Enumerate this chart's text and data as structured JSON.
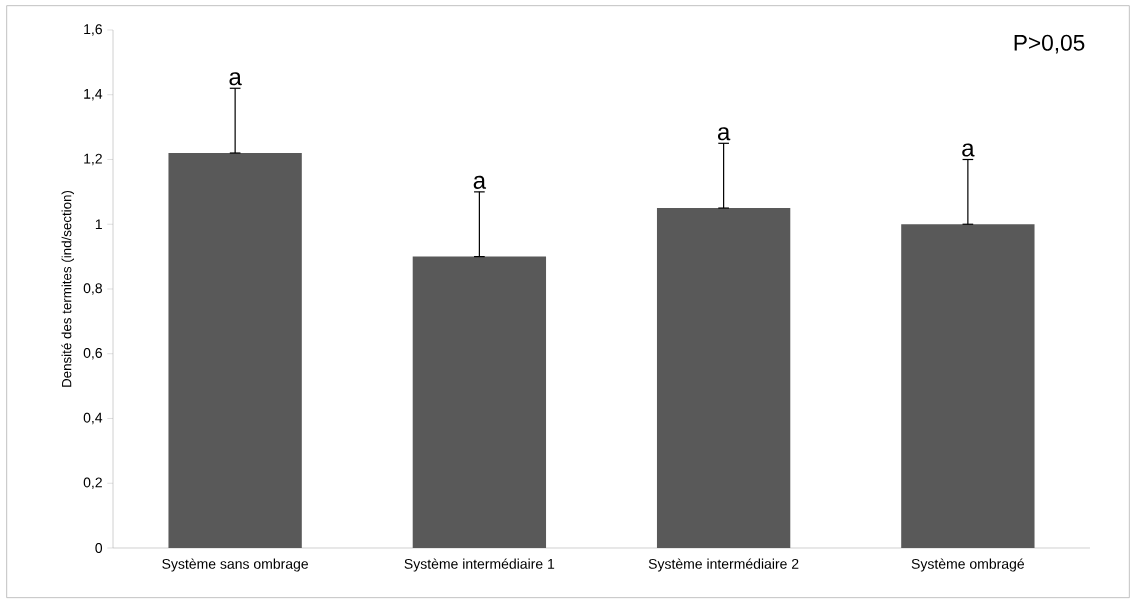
{
  "chart_data": {
    "type": "bar",
    "ylabel": "Densité des termites (ind/section)",
    "categories": [
      "Système sans ombrage",
      "Système intermédiaire 1",
      "Système intermédiaire 2",
      "Système ombragé"
    ],
    "values": [
      1.22,
      0.9,
      1.05,
      1.0
    ],
    "errors": [
      [
        1.22,
        1.42
      ],
      [
        0.9,
        1.1
      ],
      [
        1.05,
        1.25
      ],
      [
        1.0,
        1.2
      ]
    ],
    "color": "#595959",
    "ylim": [
      0,
      1.6
    ],
    "yticks": [
      0,
      {
        "value": 0.2,
        "label": "0,2"
      },
      {
        "value": 0.4,
        "label": "0,4"
      },
      {
        "value": 0.6,
        "label": "0,6"
      },
      {
        "value": 0.8,
        "label": "0,8"
      },
      1,
      {
        "value": 1.2,
        "label": "1,2"
      },
      {
        "value": 1.4,
        "label": "1,4"
      },
      {
        "value": 1.6,
        "label": "1,6"
      }
    ],
    "grid": false,
    "annotations": [
      {
        "text": "a",
        "x": "Système sans ombrage",
        "y": 1.42
      },
      {
        "text": "a",
        "x": "Système intermédiaire 1",
        "y": 1.1
      },
      {
        "text": "a",
        "x": "Système intermédiaire 2",
        "y": 1.25
      },
      {
        "text": "a",
        "x": "Système ombragé",
        "y": 1.2
      },
      "P>0,05"
    ]
  }
}
